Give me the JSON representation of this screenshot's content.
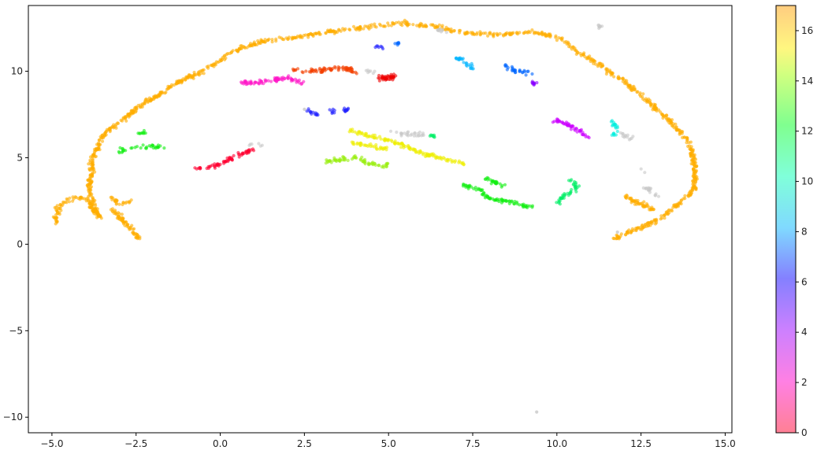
{
  "chart_data": {
    "type": "scatter",
    "title": "",
    "xlabel": "",
    "ylabel": "",
    "xlim": [
      -5.7,
      15.2
    ],
    "ylim": [
      -10.9,
      13.8
    ],
    "x_ticks": [
      -5.0,
      -2.5,
      0.0,
      2.5,
      5.0,
      7.5,
      10.0,
      12.5,
      15.0
    ],
    "x_tick_labels": [
      "−5.0",
      "−2.5",
      "0.0",
      "2.5",
      "5.0",
      "7.5",
      "10.0",
      "12.5",
      "15.0"
    ],
    "y_ticks": [
      -10,
      -5,
      0,
      5,
      10
    ],
    "y_tick_labels": [
      "−10",
      "−5",
      "0",
      "5",
      "10"
    ],
    "grid": false,
    "legend": "none",
    "colorbar": {
      "range": [
        0,
        17
      ],
      "ticks": [
        0,
        2,
        4,
        6,
        8,
        10,
        12,
        14,
        16
      ],
      "tick_labels": [
        "0",
        "2",
        "4",
        "6",
        "8",
        "10",
        "12",
        "14",
        "16"
      ],
      "colormap": "gist_rainbow_r",
      "alpha": 0.5
    },
    "marker_alpha": 0.6,
    "series": [
      {
        "label_value": 15,
        "color": "#ffad00",
        "segments": [
          [
            [
              -4.9,
              1.3
            ],
            [
              -4.8,
              2.2
            ],
            [
              -4.3,
              2.8
            ],
            [
              -3.9,
              2.5
            ],
            [
              -3.6,
              1.5
            ],
            [
              -3.9,
              3.0
            ],
            [
              -3.8,
              4.8
            ],
            [
              -3.5,
              6.3
            ],
            [
              -3.0,
              7.0
            ],
            [
              -2.4,
              8.0
            ],
            [
              -1.7,
              8.8
            ],
            [
              -1.0,
              9.6
            ],
            [
              -0.2,
              10.3
            ],
            [
              0.4,
              11.2
            ],
            [
              1.2,
              11.7
            ],
            [
              2.3,
              12.0
            ],
            [
              3.4,
              12.3
            ],
            [
              4.5,
              12.6
            ],
            [
              5.4,
              12.8
            ],
            [
              6.3,
              12.6
            ],
            [
              7.3,
              12.2
            ],
            [
              8.3,
              12.1
            ],
            [
              9.2,
              12.3
            ],
            [
              10.0,
              12.0
            ],
            [
              10.7,
              11.0
            ],
            [
              11.4,
              10.2
            ],
            [
              12.0,
              9.4
            ],
            [
              12.7,
              8.3
            ],
            [
              13.3,
              7.2
            ],
            [
              13.9,
              6.0
            ],
            [
              14.1,
              4.6
            ],
            [
              14.1,
              3.2
            ],
            [
              13.6,
              2.3
            ],
            [
              13.0,
              1.4
            ],
            [
              12.4,
              0.9
            ],
            [
              11.7,
              0.3
            ]
          ],
          [
            [
              -3.2,
              2.0
            ],
            [
              -2.9,
              1.4
            ],
            [
              -2.6,
              0.8
            ],
            [
              -2.4,
              0.2
            ]
          ],
          [
            [
              -3.3,
              2.8
            ],
            [
              -3.0,
              2.3
            ],
            [
              -2.6,
              2.5
            ]
          ],
          [
            [
              12.0,
              2.8
            ],
            [
              12.4,
              2.4
            ],
            [
              12.9,
              2.0
            ]
          ]
        ],
        "count": 1300
      },
      {
        "label_value": 16,
        "color": "#f44000",
        "segments": [
          [
            [
              2.1,
              10.1
            ],
            [
              2.7,
              10.0
            ],
            [
              3.2,
              10.1
            ],
            [
              3.7,
              10.2
            ],
            [
              4.0,
              9.9
            ]
          ]
        ],
        "count": 80
      },
      {
        "label_value": 17,
        "color": "#ee0000",
        "segments": [
          [
            [
              4.7,
              9.6
            ],
            [
              5.0,
              9.6
            ],
            [
              5.2,
              9.7
            ]
          ]
        ],
        "count": 40
      },
      {
        "label_value": 0,
        "color": "#ff0030",
        "segments": [
          [
            [
              -0.7,
              4.4
            ],
            [
              -0.2,
              4.5
            ],
            [
              0.3,
              4.9
            ],
            [
              0.7,
              5.3
            ],
            [
              1.1,
              5.6
            ]
          ]
        ],
        "count": 70
      },
      {
        "label_value": 2,
        "color": "#ff18c8",
        "segments": [
          [
            [
              0.6,
              9.4
            ],
            [
              1.1,
              9.3
            ],
            [
              1.6,
              9.5
            ],
            [
              2.1,
              9.6
            ],
            [
              2.4,
              9.3
            ]
          ]
        ],
        "count": 80
      },
      {
        "label_value": 3,
        "color": "#cc00ff",
        "segments": [
          [
            [
              9.9,
              7.2
            ],
            [
              10.3,
              7.0
            ],
            [
              10.7,
              6.5
            ],
            [
              11.0,
              6.1
            ]
          ]
        ],
        "count": 50
      },
      {
        "label_value": 4,
        "color": "#8800ff",
        "segments": [
          [
            [
              9.2,
              9.3
            ],
            [
              9.4,
              9.3
            ]
          ]
        ],
        "count": 10
      },
      {
        "label_value": 5,
        "color": "#2222ff",
        "segments": [
          [
            [
              2.6,
              7.7
            ],
            [
              2.9,
              7.5
            ]
          ],
          [
            [
              3.2,
              7.7
            ],
            [
              3.6,
              7.7
            ],
            [
              3.9,
              7.8
            ]
          ],
          [
            [
              4.6,
              11.4
            ],
            [
              4.9,
              11.4
            ]
          ]
        ],
        "count": 40
      },
      {
        "label_value": 6,
        "color": "#0066ff",
        "segments": [
          [
            [
              8.4,
              10.3
            ],
            [
              8.8,
              10.0
            ],
            [
              9.2,
              9.9
            ]
          ],
          [
            [
              5.2,
              11.6
            ],
            [
              5.4,
              11.5
            ]
          ]
        ],
        "count": 35
      },
      {
        "label_value": 7,
        "color": "#00b4ff",
        "segments": [
          [
            [
              7.0,
              10.8
            ],
            [
              7.3,
              10.4
            ],
            [
              7.5,
              10.2
            ]
          ]
        ],
        "count": 25
      },
      {
        "label_value": 8,
        "color": "#00eedd",
        "segments": [
          [
            [
              11.6,
              7.1
            ],
            [
              11.8,
              6.7
            ],
            [
              11.7,
              6.3
            ]
          ]
        ],
        "count": 20
      },
      {
        "label_value": 10,
        "color": "#00ee66",
        "segments": [
          [
            [
              10.0,
              2.4
            ],
            [
              10.3,
              2.9
            ],
            [
              10.6,
              3.3
            ],
            [
              10.4,
              3.7
            ]
          ],
          [
            [
              6.2,
              6.3
            ],
            [
              6.4,
              6.2
            ]
          ]
        ],
        "count": 50
      },
      {
        "label_value": 11,
        "color": "#11ee11",
        "segments": [
          [
            [
              7.2,
              3.4
            ],
            [
              7.7,
              3.2
            ],
            [
              8.0,
              2.6
            ],
            [
              8.5,
              2.5
            ],
            [
              9.0,
              2.2
            ],
            [
              9.3,
              2.2
            ]
          ],
          [
            [
              7.9,
              3.8
            ],
            [
              8.4,
              3.4
            ]
          ],
          [
            [
              -3.1,
              5.3
            ],
            [
              -2.6,
              5.6
            ],
            [
              -2.1,
              5.7
            ],
            [
              -1.7,
              5.6
            ]
          ],
          [
            [
              -2.5,
              6.4
            ],
            [
              -2.1,
              6.5
            ]
          ]
        ],
        "count": 150
      },
      {
        "label_value": 13,
        "color": "#99ee11",
        "segments": [
          [
            [
              3.1,
              4.8
            ],
            [
              3.6,
              4.9
            ],
            [
              3.9,
              5.0
            ]
          ],
          [
            [
              4.0,
              5.1
            ],
            [
              4.4,
              4.7
            ],
            [
              4.8,
              4.5
            ],
            [
              5.1,
              4.7
            ]
          ]
        ],
        "count": 70
      },
      {
        "label_value": 14,
        "color": "#eeee00",
        "segments": [
          [
            [
              3.8,
              6.6
            ],
            [
              4.3,
              6.3
            ],
            [
              4.8,
              6.1
            ],
            [
              5.3,
              5.8
            ],
            [
              5.8,
              5.4
            ],
            [
              6.3,
              5.1
            ],
            [
              6.8,
              4.9
            ],
            [
              7.3,
              4.6
            ]
          ],
          [
            [
              3.9,
              5.9
            ],
            [
              4.4,
              5.7
            ],
            [
              5.0,
              5.5
            ]
          ]
        ],
        "count": 160
      },
      {
        "label_value": -1,
        "color": "#c8c8c8",
        "segments": [
          [
            [
              5.1,
              6.5
            ],
            [
              5.6,
              6.4
            ],
            [
              6.1,
              6.3
            ]
          ],
          [
            [
              4.3,
              10.0
            ],
            [
              4.6,
              9.9
            ]
          ],
          [
            [
              11.9,
              6.4
            ],
            [
              12.3,
              6.0
            ]
          ],
          [
            [
              12.6,
              3.3
            ],
            [
              13.0,
              2.8
            ]
          ],
          [
            [
              12.3,
              4.5
            ],
            [
              12.6,
              4.2
            ]
          ],
          [
            [
              11.3,
              12.6
            ]
          ],
          [
            [
              0.9,
              5.7
            ],
            [
              1.2,
              5.8
            ]
          ],
          [
            [
              6.4,
              12.4
            ],
            [
              6.8,
              12.3
            ]
          ]
        ],
        "count": 90,
        "outliers": [
          [
            9.4,
            -9.7
          ],
          [
            11.8,
            0.7
          ],
          [
            2.5,
            7.8
          ]
        ]
      }
    ]
  }
}
